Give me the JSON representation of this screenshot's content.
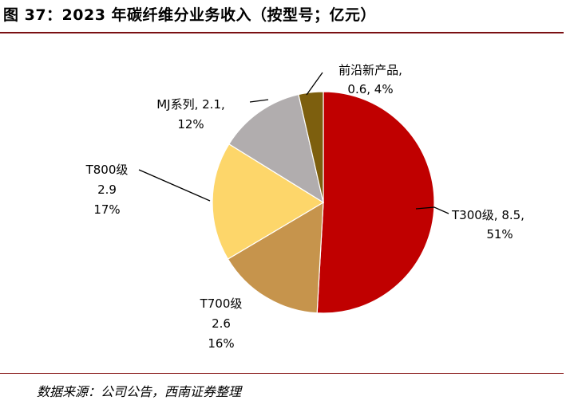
{
  "header": {
    "title": "图 37：2023 年碳纤维分业务收入（按型号；亿元）"
  },
  "footer": {
    "source": "数据来源：公司公告，西南证券整理"
  },
  "chart_data": {
    "type": "pie",
    "title": "2023 年碳纤维分业务收入（按型号；亿元）",
    "unit": "亿元",
    "slices": [
      {
        "name": "T300级",
        "value": 8.5,
        "percent": "51%",
        "color": "#c00000",
        "label_lines": [
          "T300级, 8.5,",
          "51%"
        ]
      },
      {
        "name": "T700级",
        "value": 2.6,
        "percent": "16%",
        "color": "#c6944c",
        "label_lines": [
          "T700级",
          "2.6",
          "16%"
        ]
      },
      {
        "name": "T800级",
        "value": 2.9,
        "percent": "17%",
        "color": "#fdd66a",
        "label_lines": [
          "T800级",
          "2.9",
          "17%"
        ]
      },
      {
        "name": "MJ系列",
        "value": 2.1,
        "percent": "12%",
        "color": "#b1adae",
        "label_lines": [
          "MJ系列, 2.1,",
          "12%"
        ]
      },
      {
        "name": "前沿新产品",
        "value": 0.6,
        "percent": "4%",
        "color": "#7d5f0e",
        "label_lines": [
          "前沿新产品,",
          "0.6, 4%"
        ]
      }
    ]
  }
}
